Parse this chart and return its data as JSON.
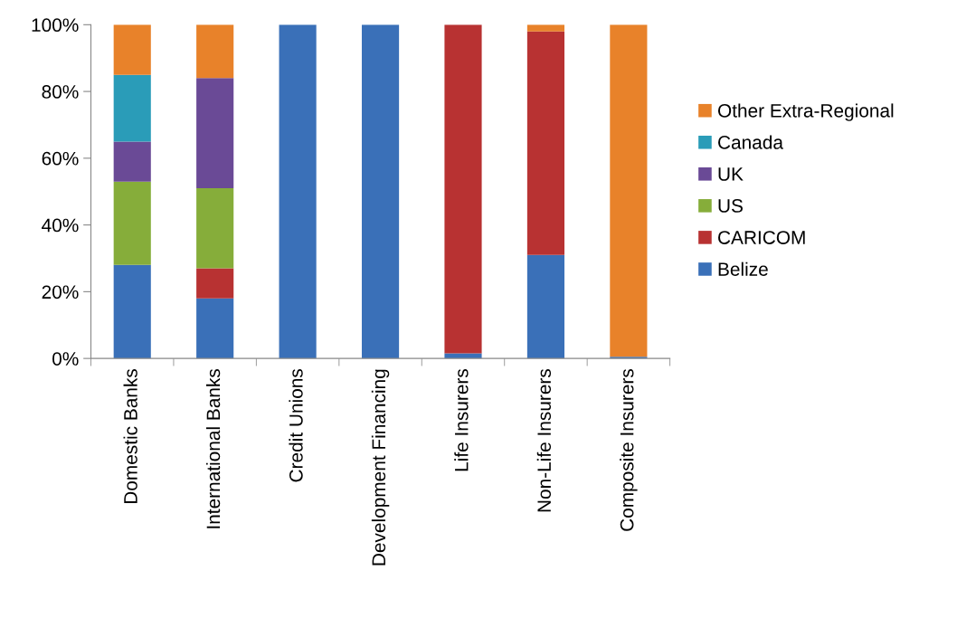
{
  "chart_data": {
    "type": "bar",
    "stacked": true,
    "categories": [
      "Domestic Banks",
      "International Banks",
      "Credit Unions",
      "Development Financing",
      "Life Insurers",
      "Non-Life Insurers",
      "Composite Insurers"
    ],
    "series": [
      {
        "name": "Belize",
        "color": "#3a70b8",
        "values": [
          28,
          18,
          100,
          100,
          1.5,
          31,
          0.5
        ]
      },
      {
        "name": "CARICOM",
        "color": "#b83232",
        "values": [
          0,
          9,
          0,
          0,
          98.5,
          67,
          0
        ]
      },
      {
        "name": "US",
        "color": "#86ad3a",
        "values": [
          25,
          24,
          0,
          0,
          0,
          0,
          0
        ]
      },
      {
        "name": "UK",
        "color": "#6a4a96",
        "values": [
          12,
          33,
          0,
          0,
          0,
          0,
          0
        ]
      },
      {
        "name": "Canada",
        "color": "#2a9cb8",
        "values": [
          20,
          0,
          0,
          0,
          0,
          0,
          0
        ]
      },
      {
        "name": "Other Extra-Regional",
        "color": "#e8822a",
        "values": [
          15,
          16,
          0,
          0,
          0,
          2,
          99.5
        ]
      }
    ],
    "ylim": [
      0,
      100
    ],
    "yticks": [
      {
        "value": 0,
        "label": "0%"
      },
      {
        "value": 20,
        "label": "20%"
      },
      {
        "value": 40,
        "label": "40%"
      },
      {
        "value": 60,
        "label": "60%"
      },
      {
        "value": 80,
        "label": "80%"
      },
      {
        "value": 100,
        "label": "100%"
      }
    ],
    "grid": false,
    "legend": "right"
  }
}
